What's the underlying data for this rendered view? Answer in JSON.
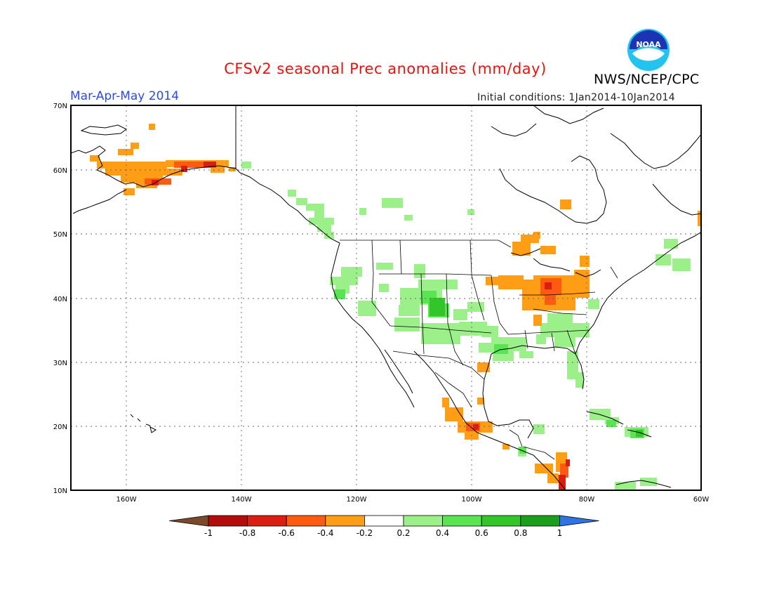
{
  "title": "CFSv2 seasonal Prec anomalies (mm/day)",
  "organization": "NWS/NCEP/CPC",
  "logo_text": "NOAA",
  "period": "Mar-Apr-May 2014",
  "initial_conditions": "Initial conditions: 1Jan2014-10Jan2014",
  "lat_ticks": [
    "70N",
    "60N",
    "50N",
    "40N",
    "30N",
    "20N",
    "10N"
  ],
  "lon_ticks": [
    "160W",
    "140W",
    "120W",
    "100W",
    "80W",
    "60W"
  ],
  "colorbar": {
    "labels": [
      "-1",
      "-0.8",
      "-0.6",
      "-0.4",
      "-0.2",
      "0.2",
      "0.4",
      "0.6",
      "0.8",
      "1"
    ],
    "colors": [
      "#7a4a2a",
      "#b40c0c",
      "#dc1e12",
      "#ff5a12",
      "#ff9e14",
      "#ffffff",
      "#9bf08a",
      "#59e452",
      "#33c628",
      "#1b9e1a",
      "#2e74e6"
    ]
  },
  "icons": {
    "logo": "noaa-logo-icon"
  }
}
